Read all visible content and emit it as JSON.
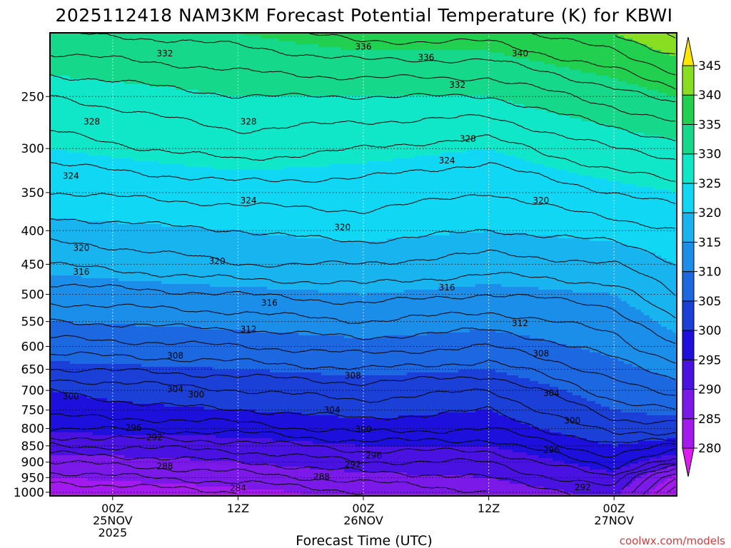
{
  "chart_data": {
    "type": "heatmap",
    "title": "2025112418 NAM3KM Forecast Potential Temperature (K) for KBWI",
    "xlabel": "Forecast Time (UTC)",
    "ylabel": "",
    "y_scale": "log-pressure",
    "ylim": [
      1013,
      200
    ],
    "y_ticks": [
      "250",
      "300",
      "350",
      "400",
      "450",
      "500",
      "550",
      "600",
      "650",
      "700",
      "750",
      "800",
      "850",
      "900",
      "950",
      "1000"
    ],
    "y_values": [
      250,
      300,
      350,
      400,
      450,
      500,
      550,
      600,
      650,
      700,
      750,
      800,
      850,
      900,
      950,
      1000
    ],
    "x_ticks": [
      {
        "hour": 6,
        "line1": "00Z",
        "line2": "25NOV",
        "line3": "2025"
      },
      {
        "hour": 18,
        "line1": "12Z",
        "line2": "",
        "line3": ""
      },
      {
        "hour": 30,
        "line1": "00Z",
        "line2": "26NOV",
        "line3": ""
      },
      {
        "hour": 42,
        "line1": "12Z",
        "line2": "",
        "line3": ""
      },
      {
        "hour": 54,
        "line1": "00Z",
        "line2": "27NOV",
        "line3": ""
      }
    ],
    "xlim_hours": [
      0,
      60
    ],
    "grid": true,
    "colorbar": {
      "levels": [
        "280",
        "285",
        "290",
        "295",
        "300",
        "305",
        "310",
        "315",
        "320",
        "325",
        "330",
        "335",
        "340",
        "345"
      ],
      "level_values": [
        280,
        285,
        290,
        295,
        300,
        305,
        310,
        315,
        320,
        325,
        330,
        335,
        340,
        345
      ],
      "colors": [
        "#cf1af0",
        "#a31aee",
        "#7b1ae8",
        "#4a12e0",
        "#1e10dc",
        "#1a40d8",
        "#1c68e0",
        "#1a8ee8",
        "#18b4f0",
        "#10d8f4",
        "#10e6c8",
        "#16d88a",
        "#22d050",
        "#8ade22",
        "#cdf000",
        "#ffe600"
      ],
      "over_color": "#ffe600",
      "under_color": "#dd1af0"
    },
    "ground_color": "#a0522d",
    "isentrope_profiles": [
      {
        "time_hour": 0,
        "pressure": [
          1000,
          950,
          900,
          850,
          800,
          750,
          700,
          650,
          600,
          550,
          500,
          450,
          400,
          350,
          300,
          250,
          200
        ],
        "theta": [
          282,
          285,
          288,
          292,
          296,
          299,
          300,
          304,
          307,
          310,
          313,
          316,
          319,
          322,
          325,
          328,
          334
        ]
      },
      {
        "time_hour": 18,
        "pressure": [
          1000,
          950,
          900,
          850,
          800,
          750,
          700,
          650,
          600,
          550,
          500,
          450,
          400,
          350,
          300,
          250,
          200
        ],
        "theta": [
          284,
          287,
          290,
          293,
          297,
          300,
          302,
          305,
          308,
          311,
          314,
          318,
          320,
          323,
          327,
          330,
          335
        ]
      },
      {
        "time_hour": 30,
        "pressure": [
          1000,
          950,
          900,
          850,
          800,
          750,
          700,
          650,
          600,
          550,
          500,
          450,
          400,
          350,
          300,
          250,
          200
        ],
        "theta": [
          286,
          289,
          292,
          295,
          299,
          301,
          303,
          306,
          309,
          312,
          315,
          318,
          321,
          323,
          326,
          330,
          337
        ]
      },
      {
        "time_hour": 42,
        "pressure": [
          1000,
          950,
          900,
          850,
          800,
          750,
          700,
          650,
          600,
          550,
          500,
          450,
          400,
          350,
          300,
          250,
          200
        ],
        "theta": [
          288,
          290,
          292,
          295,
          298,
          300,
          302,
          305,
          308,
          311,
          314,
          317,
          320,
          322,
          325,
          330,
          337
        ]
      },
      {
        "time_hour": 54,
        "pressure": [
          1000,
          950,
          900,
          850,
          800,
          750,
          700,
          650,
          600,
          550,
          500,
          450,
          400,
          350,
          300,
          250,
          200
        ],
        "theta": [
          291,
          294,
          297,
          300,
          303,
          305,
          307,
          309,
          311,
          313,
          315,
          318,
          321,
          324,
          328,
          333,
          340
        ]
      },
      {
        "time_hour": 60,
        "pressure": [
          1000,
          950,
          900,
          850,
          800,
          750,
          700,
          650,
          600,
          550,
          500,
          450,
          400,
          350,
          300,
          250,
          200
        ],
        "theta": [
          280,
          284,
          292,
          298,
          303,
          306,
          309,
          311,
          314,
          316,
          318,
          320,
          322,
          325,
          329,
          335,
          343
        ]
      }
    ],
    "contour_interval": 2,
    "contour_labels": [
      {
        "text": "336",
        "hour": 30,
        "pressure": 210
      },
      {
        "text": "332",
        "hour": 11,
        "pressure": 215
      },
      {
        "text": "336",
        "hour": 36,
        "pressure": 218
      },
      {
        "text": "340",
        "hour": 45,
        "pressure": 215
      },
      {
        "text": "332",
        "hour": 39,
        "pressure": 240
      },
      {
        "text": "328",
        "hour": 4,
        "pressure": 273
      },
      {
        "text": "328",
        "hour": 19,
        "pressure": 273
      },
      {
        "text": "328",
        "hour": 40,
        "pressure": 290
      },
      {
        "text": "324",
        "hour": 2,
        "pressure": 330
      },
      {
        "text": "324",
        "hour": 38,
        "pressure": 313
      },
      {
        "text": "324",
        "hour": 19,
        "pressure": 360
      },
      {
        "text": "320",
        "hour": 47,
        "pressure": 360
      },
      {
        "text": "320",
        "hour": 28,
        "pressure": 395
      },
      {
        "text": "320",
        "hour": 3,
        "pressure": 425
      },
      {
        "text": "320",
        "hour": 16,
        "pressure": 445
      },
      {
        "text": "316",
        "hour": 3,
        "pressure": 462
      },
      {
        "text": "316",
        "hour": 38,
        "pressure": 488
      },
      {
        "text": "316",
        "hour": 21,
        "pressure": 515
      },
      {
        "text": "312",
        "hour": 19,
        "pressure": 565
      },
      {
        "text": "312",
        "hour": 45,
        "pressure": 553
      },
      {
        "text": "308",
        "hour": 12,
        "pressure": 620
      },
      {
        "text": "308",
        "hour": 29,
        "pressure": 665
      },
      {
        "text": "308",
        "hour": 47,
        "pressure": 615
      },
      {
        "text": "304",
        "hour": 12,
        "pressure": 697
      },
      {
        "text": "300",
        "hour": 2,
        "pressure": 715
      },
      {
        "text": "300",
        "hour": 14,
        "pressure": 710
      },
      {
        "text": "304",
        "hour": 48,
        "pressure": 707
      },
      {
        "text": "304",
        "hour": 27,
        "pressure": 750
      },
      {
        "text": "300",
        "hour": 50,
        "pressure": 778
      },
      {
        "text": "296",
        "hour": 8,
        "pressure": 798
      },
      {
        "text": "300",
        "hour": 30,
        "pressure": 802
      },
      {
        "text": "292",
        "hour": 10,
        "pressure": 825
      },
      {
        "text": "296",
        "hour": 48,
        "pressure": 862
      },
      {
        "text": "296",
        "hour": 31,
        "pressure": 880
      },
      {
        "text": "292",
        "hour": 29,
        "pressure": 908
      },
      {
        "text": "288",
        "hour": 11,
        "pressure": 913
      },
      {
        "text": "288",
        "hour": 26,
        "pressure": 947
      },
      {
        "text": "284",
        "hour": 18,
        "pressure": 985
      },
      {
        "text": "292",
        "hour": 51,
        "pressure": 983
      }
    ]
  },
  "credit": "coolwx.com/models"
}
